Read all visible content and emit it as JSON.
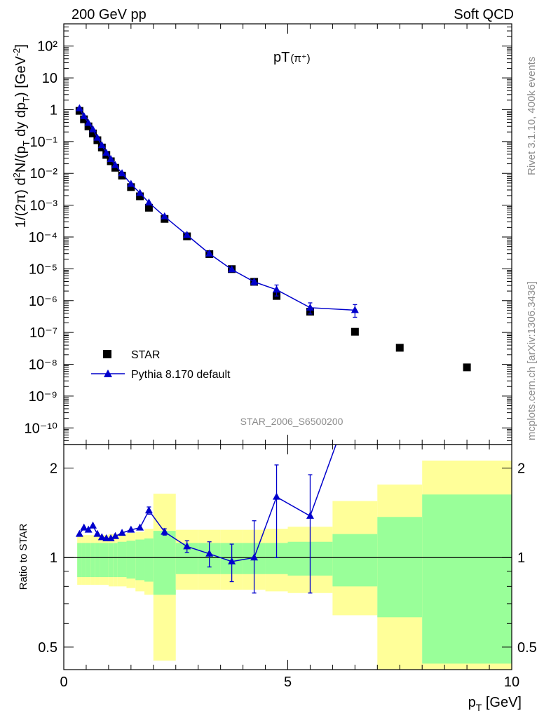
{
  "header": {
    "left": "200 GeV pp",
    "right": "Soft QCD"
  },
  "side_text": {
    "rivet": "Rivet 3.1.10,  400k events",
    "mcplots": "mcplots.cern.ch [arXiv:1306.3436]"
  },
  "watermark": "STAR_2006_S6500200",
  "plot_title": {
    "main": "pT",
    "sub": "(π⁺)"
  },
  "axes": {
    "ylabel_top": "1/(2π) d²N/(p_T dy dp_T) [GeV⁻²]",
    "ylabel_bottom": "Ratio to STAR",
    "xlabel": "p_T [GeV]"
  },
  "legend": {
    "data_label": "STAR",
    "mc_label": "Pythia 8.170 default",
    "position": "bottom-left"
  },
  "colors": {
    "data": "#000000",
    "mc": "#0000cc",
    "band_inner": "#99ff99",
    "band_outer": "#ffff99"
  },
  "chart_data": [
    {
      "type": "scatter",
      "panel": "main",
      "title": "pT(π⁺)",
      "xlabel": "p_T [GeV]",
      "ylabel": "1/(2π) d²N/(p_T dy dp_T) [GeV⁻²]",
      "xlim": [
        0,
        10
      ],
      "ylim": [
        3e-11,
        500
      ],
      "yscale": "log",
      "x_ticks": [
        "0",
        "5",
        "10"
      ],
      "y_ticks": [
        "10⁻¹⁰",
        "10⁻⁹",
        "10⁻⁸",
        "10⁻⁷",
        "10⁻⁶",
        "10⁻⁵",
        "10⁻⁴",
        "10⁻³",
        "10⁻²",
        "10⁻¹",
        "1",
        "10",
        "10²"
      ],
      "series": [
        {
          "name": "STAR",
          "marker": "square",
          "x": [
            0.35,
            0.45,
            0.55,
            0.65,
            0.75,
            0.85,
            0.95,
            1.05,
            1.15,
            1.3,
            1.5,
            1.7,
            1.9,
            2.25,
            2.75,
            3.25,
            3.75,
            4.25,
            4.75,
            5.5,
            6.5,
            7.5,
            9.0
          ],
          "y": [
            0.92,
            0.5,
            0.3,
            0.18,
            0.11,
            0.065,
            0.038,
            0.024,
            0.015,
            0.0085,
            0.0037,
            0.0019,
            0.00083,
            0.00037,
            0.000105,
            2.9e-05,
            9.8e-06,
            3.9e-06,
            1.4e-06,
            4.5e-07,
            1.05e-07,
            3.3e-08,
            8e-09
          ]
        },
        {
          "name": "Pythia 8.170 default",
          "marker": "triangle",
          "x": [
            0.35,
            0.45,
            0.55,
            0.65,
            0.75,
            0.85,
            0.95,
            1.05,
            1.15,
            1.3,
            1.5,
            1.7,
            1.9,
            2.25,
            2.75,
            3.25,
            3.75,
            4.25,
            4.75,
            5.5,
            6.5
          ],
          "y": [
            1.1,
            0.62,
            0.38,
            0.24,
            0.13,
            0.076,
            0.044,
            0.028,
            0.018,
            0.01,
            0.0046,
            0.0024,
            0.0012,
            0.00044,
            0.000115,
            3e-05,
            9.5e-06,
            3.9e-06,
            2.2e-06,
            6e-07,
            5e-07
          ],
          "yerr_low": [
            0,
            0,
            0,
            0,
            0,
            0,
            0,
            0,
            0,
            0,
            0,
            0,
            0,
            0,
            0,
            0,
            0,
            8e-07,
            8e-07,
            2.2e-07,
            2e-07
          ],
          "yerr_high": [
            0,
            0,
            0,
            0,
            0,
            0,
            0,
            0,
            0,
            0,
            0,
            0,
            0,
            0,
            0,
            0,
            0,
            4e-07,
            9e-07,
            2.5e-07,
            2.5e-07
          ]
        }
      ]
    },
    {
      "type": "line",
      "panel": "ratio",
      "ylabel": "Ratio to STAR",
      "xlabel": "p_T [GeV]",
      "xlim": [
        0,
        10
      ],
      "ylim": [
        0.42,
        2.4
      ],
      "yscale": "log",
      "y_ticks": [
        "0.5",
        "1",
        "2"
      ],
      "bands": {
        "edges": [
          0.3,
          0.4,
          0.5,
          0.6,
          0.7,
          0.8,
          0.9,
          1.0,
          1.1,
          1.2,
          1.4,
          1.6,
          1.8,
          2.0,
          2.5,
          3.0,
          3.5,
          4.0,
          4.5,
          5.0,
          6.0,
          7.0,
          8.0,
          10.0
        ],
        "inner_low": [
          0.86,
          0.86,
          0.86,
          0.86,
          0.86,
          0.86,
          0.86,
          0.86,
          0.86,
          0.86,
          0.85,
          0.84,
          0.83,
          0.75,
          0.88,
          0.88,
          0.88,
          0.88,
          0.88,
          0.87,
          0.8,
          0.63,
          0.44
        ],
        "inner_high": [
          1.12,
          1.12,
          1.12,
          1.12,
          1.12,
          1.12,
          1.12,
          1.12,
          1.12,
          1.13,
          1.14,
          1.15,
          1.16,
          1.23,
          1.12,
          1.12,
          1.12,
          1.12,
          1.12,
          1.13,
          1.2,
          1.37,
          1.63
        ],
        "outer_low": [
          0.81,
          0.81,
          0.81,
          0.81,
          0.81,
          0.81,
          0.81,
          0.8,
          0.8,
          0.8,
          0.79,
          0.77,
          0.75,
          0.45,
          0.78,
          0.78,
          0.78,
          0.78,
          0.77,
          0.76,
          0.64,
          0.4,
          0.4
        ],
        "outer_high": [
          1.19,
          1.19,
          1.19,
          1.19,
          1.19,
          1.19,
          1.19,
          1.2,
          1.2,
          1.2,
          1.21,
          1.22,
          1.25,
          1.64,
          1.24,
          1.24,
          1.24,
          1.24,
          1.25,
          1.27,
          1.55,
          1.76,
          2.12
        ]
      },
      "series": [
        {
          "name": "Pythia 8.170 default",
          "x": [
            0.35,
            0.45,
            0.55,
            0.65,
            0.75,
            0.85,
            0.95,
            1.05,
            1.15,
            1.3,
            1.5,
            1.7,
            1.9,
            2.25,
            2.75,
            3.25,
            3.75,
            4.25,
            4.75,
            5.5,
            6.5
          ],
          "y": [
            1.2,
            1.26,
            1.24,
            1.28,
            1.2,
            1.17,
            1.16,
            1.16,
            1.18,
            1.21,
            1.24,
            1.26,
            1.44,
            1.22,
            1.09,
            1.03,
            0.97,
            1.0,
            1.6,
            1.38,
            3.6
          ],
          "yerr_low": [
            0,
            0,
            0,
            0,
            0,
            0,
            0,
            0,
            0,
            0,
            0,
            0,
            0.04,
            0.03,
            0.05,
            0.1,
            0.14,
            0.24,
            0.6,
            0.62,
            0
          ],
          "yerr_high": [
            0,
            0,
            0,
            0,
            0,
            0,
            0,
            0,
            0,
            0,
            0,
            0,
            0.04,
            0.03,
            0.05,
            0.1,
            0.14,
            0.33,
            0.45,
            0.52,
            0
          ]
        }
      ]
    }
  ]
}
